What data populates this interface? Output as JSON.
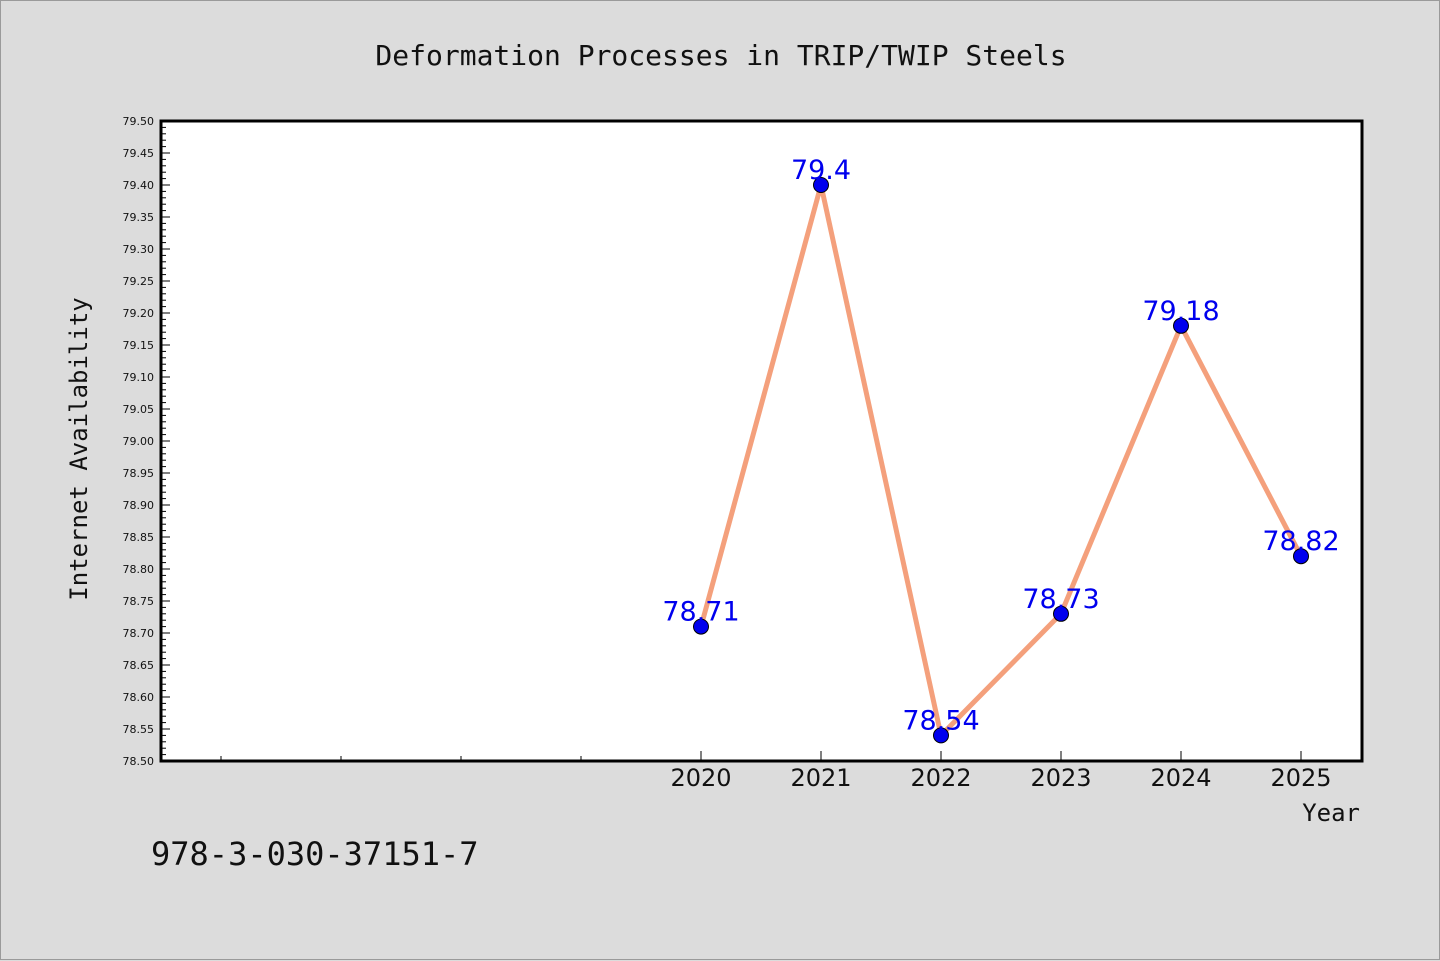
{
  "chart_data": {
    "type": "line",
    "title": "Deformation Processes in TRIP/TWIP Steels",
    "xlabel": "Year",
    "ylabel": "Internet Availability",
    "x": [
      "2020",
      "2021",
      "2022",
      "2023",
      "2024",
      "2025"
    ],
    "series": [
      {
        "values": [
          78.71,
          79.4,
          78.54,
          78.73,
          79.18,
          78.82
        ],
        "data_labels": [
          "78.71",
          "79.4",
          "78.54",
          "78.73",
          "79.18",
          "78.82"
        ]
      }
    ],
    "ylim": [
      78.5,
      79.5
    ],
    "y_ticks": [
      "78.50",
      "78.55",
      "78.60",
      "78.65",
      "78.70",
      "78.75",
      "78.80",
      "78.85",
      "78.90",
      "78.95",
      "79.00",
      "79.05",
      "79.10",
      "79.15",
      "79.20",
      "79.25",
      "79.30",
      "79.35",
      "79.40",
      "79.45",
      "79.50"
    ],
    "grid": false,
    "legend": "none",
    "colors": {
      "line": "#f4a07c",
      "marker": "#0000ee",
      "label": "#0000ee",
      "background": "#dcdcdc",
      "plot_area": "#ffffff"
    }
  },
  "footer": {
    "isbn": "978-3-030-37151-7"
  }
}
